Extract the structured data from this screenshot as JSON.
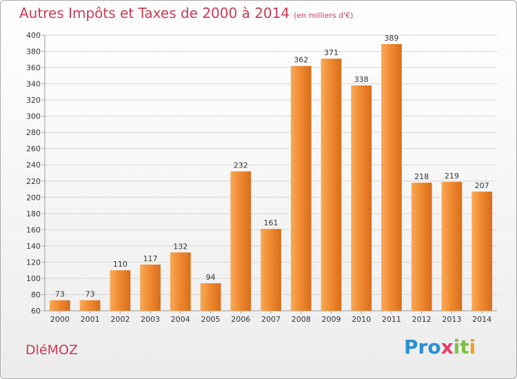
{
  "title": "Autres Impôts et Taxes de 2000 à 2014",
  "subtitle": "(en milliers d'€)",
  "town": "DléMOZ",
  "logo": [
    "Pro",
    "x",
    "it",
    "i"
  ],
  "chart_data": {
    "type": "bar",
    "categories": [
      "2000",
      "2001",
      "2002",
      "2003",
      "2004",
      "2005",
      "2006",
      "2007",
      "2008",
      "2009",
      "2010",
      "2011",
      "2012",
      "2013",
      "2014"
    ],
    "values": [
      73,
      73,
      110,
      117,
      132,
      94,
      232,
      161,
      362,
      371,
      338,
      389,
      218,
      219,
      207
    ],
    "ylim": [
      60,
      400
    ],
    "yticks": [
      60,
      80,
      100,
      120,
      140,
      160,
      180,
      200,
      220,
      240,
      260,
      280,
      300,
      320,
      340,
      360,
      380,
      400
    ],
    "grid": true,
    "bar_color": "#f08a30",
    "bar_color_light": "#f8aa58",
    "bar_color_dark": "#d86e1a"
  }
}
